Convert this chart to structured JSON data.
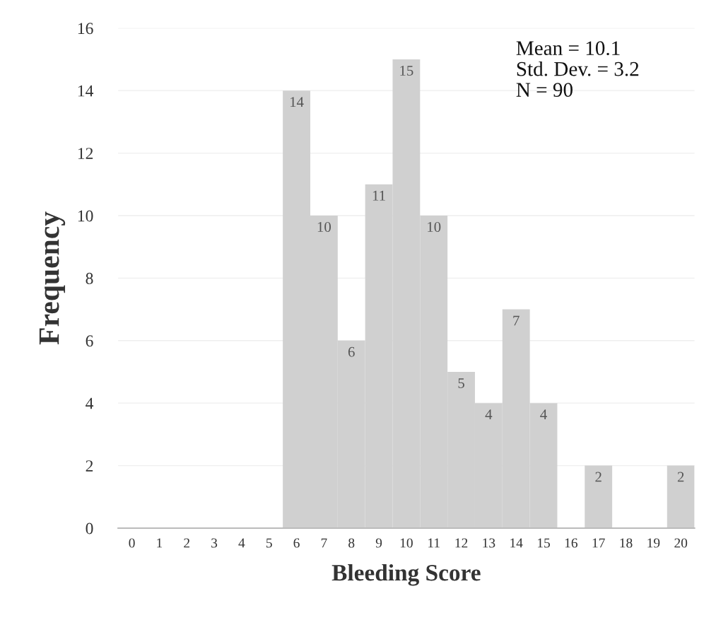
{
  "chart_data": {
    "type": "bar",
    "xlabel": "Bleeding Score",
    "ylabel": "Frequency",
    "categories": [
      "0",
      "1",
      "2",
      "3",
      "4",
      "5",
      "6",
      "7",
      "8",
      "9",
      "10",
      "11",
      "12",
      "13",
      "14",
      "15",
      "16",
      "17",
      "18",
      "19",
      "20"
    ],
    "values": [
      0,
      0,
      0,
      0,
      0,
      0,
      14,
      10,
      6,
      11,
      15,
      10,
      5,
      4,
      7,
      4,
      0,
      2,
      0,
      0,
      2
    ],
    "value_labels": [
      null,
      null,
      null,
      null,
      null,
      null,
      "14",
      "10",
      "6",
      "11",
      "15",
      "10",
      "5",
      "4",
      "7",
      "4",
      null,
      "2",
      null,
      null,
      "2"
    ],
    "color": "#d0d0d0",
    "ylim": [
      0,
      16
    ],
    "yticks": [
      0,
      2,
      4,
      6,
      8,
      10,
      12,
      14,
      16
    ],
    "grid": "y",
    "legend": false,
    "annotations": [
      "Mean = 10.1\nStd. Dev. = 3.2\nN = 90"
    ]
  }
}
